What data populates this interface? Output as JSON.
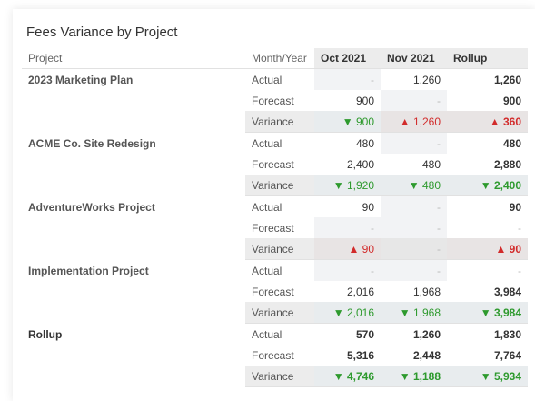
{
  "title": "Fees Variance by Project",
  "headers": {
    "project": "Project",
    "month_year": "Month/Year",
    "oct": "Oct 2021",
    "nov": "Nov 2021",
    "rollup": "Rollup"
  },
  "colors": {
    "positive": "#2e9a2e",
    "negative": "#d22b2b",
    "header_bg": "#ececec"
  },
  "groups": [
    {
      "name": "2023 Marketing Plan",
      "rows": [
        {
          "label": "Actual",
          "oct": "-",
          "nov": "1,260",
          "rollup": "1,260"
        },
        {
          "label": "Forecast",
          "oct": "900",
          "nov": "-",
          "rollup": "900"
        },
        {
          "label": "Variance",
          "oct": "▼ 900",
          "nov": "▲ 1,260",
          "rollup": "▲ 360"
        }
      ]
    },
    {
      "name": "ACME Co. Site Redesign",
      "rows": [
        {
          "label": "Actual",
          "oct": "480",
          "nov": "-",
          "rollup": "480"
        },
        {
          "label": "Forecast",
          "oct": "2,400",
          "nov": "480",
          "rollup": "2,880"
        },
        {
          "label": "Variance",
          "oct": "▼ 1,920",
          "nov": "▼ 480",
          "rollup": "▼ 2,400"
        }
      ]
    },
    {
      "name": "AdventureWorks Project",
      "rows": [
        {
          "label": "Actual",
          "oct": "90",
          "nov": "-",
          "rollup": "90"
        },
        {
          "label": "Forecast",
          "oct": "-",
          "nov": "-",
          "rollup": "-"
        },
        {
          "label": "Variance",
          "oct": "▲ 90",
          "nov": "-",
          "rollup": "▲ 90"
        }
      ]
    },
    {
      "name": "Implementation Project",
      "rows": [
        {
          "label": "Actual",
          "oct": "-",
          "nov": "-",
          "rollup": "-"
        },
        {
          "label": "Forecast",
          "oct": "2,016",
          "nov": "1,968",
          "rollup": "3,984"
        },
        {
          "label": "Variance",
          "oct": "▼ 2,016",
          "nov": "▼ 1,968",
          "rollup": "▼ 3,984"
        }
      ]
    },
    {
      "name": "Rollup",
      "rows": [
        {
          "label": "Actual",
          "oct": "570",
          "nov": "1,260",
          "rollup": "1,830"
        },
        {
          "label": "Forecast",
          "oct": "5,316",
          "nov": "2,448",
          "rollup": "7,764"
        },
        {
          "label": "Variance",
          "oct": "▼ 4,746",
          "nov": "▼ 1,188",
          "rollup": "▼ 5,934"
        }
      ]
    }
  ]
}
